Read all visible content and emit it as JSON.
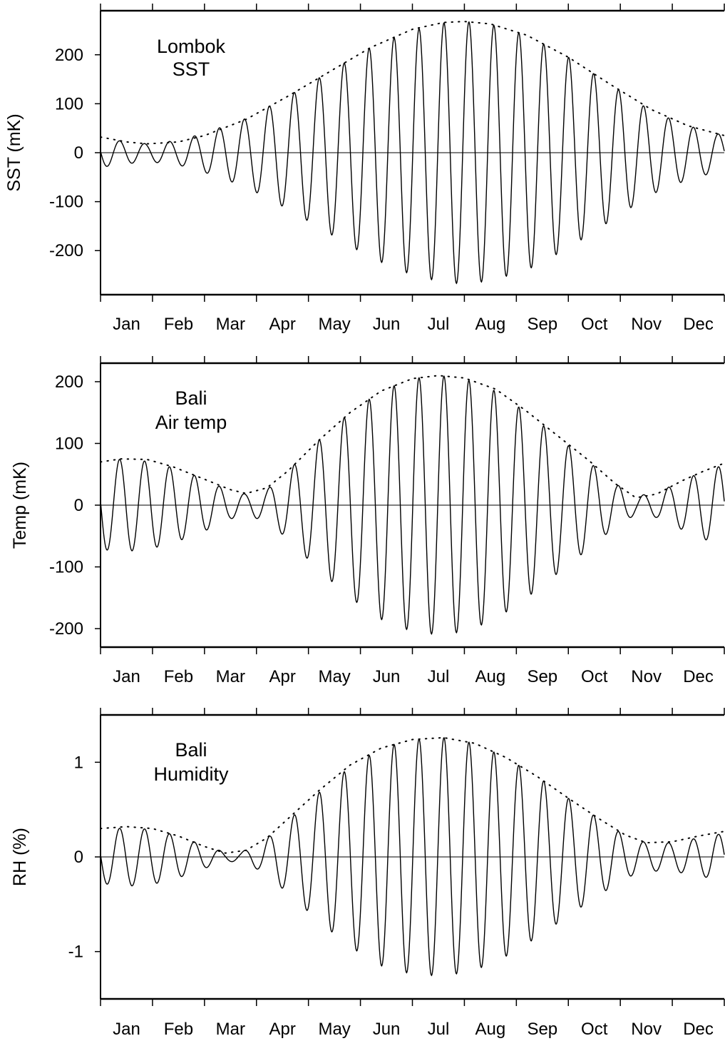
{
  "chart_data": [
    {
      "type": "line",
      "title": "",
      "annotation": [
        "Lombok",
        "SST"
      ],
      "ylabel": "SST (mK)",
      "xlabel": "",
      "ylim": [
        -290,
        290
      ],
      "yticks": [
        200,
        100,
        0,
        -100,
        -200
      ],
      "ytick_labels": [
        "200",
        "100",
        "0",
        "-100",
        "-200"
      ],
      "xlim": [
        0,
        12
      ],
      "months": [
        "Jan",
        "Feb",
        "Mar",
        "Apr",
        "May",
        "Jun",
        "Jul",
        "Aug",
        "Sep",
        "Oct",
        "Nov",
        "Dec"
      ],
      "zero_line": true,
      "series": [
        {
          "style": "solid",
          "description": "oscillation",
          "cycles_per_year": 25,
          "phase_cycles": 0.235,
          "envelope": [
            [
              0,
              30
            ],
            [
              0.3,
              25
            ],
            [
              0.9,
              18
            ],
            [
              1.5,
              25
            ],
            [
              2.0,
              40
            ],
            [
              2.8,
              70
            ],
            [
              3.6,
              115
            ],
            [
              4.4,
              165
            ],
            [
              5.2,
              215
            ],
            [
              6.0,
              250
            ],
            [
              6.6,
              265
            ],
            [
              7.0,
              268
            ],
            [
              7.5,
              262
            ],
            [
              8.2,
              240
            ],
            [
              9.0,
              195
            ],
            [
              9.8,
              140
            ],
            [
              10.6,
              85
            ],
            [
              11.3,
              55
            ],
            [
              12.0,
              35
            ]
          ]
        },
        {
          "style": "dotted",
          "description": "envelope",
          "points": [
            [
              0,
              32
            ],
            [
              0.5,
              22
            ],
            [
              0.9,
              18
            ],
            [
              1.5,
              22
            ],
            [
              2.0,
              35
            ],
            [
              2.8,
              68
            ],
            [
              3.6,
              115
            ],
            [
              4.4,
              165
            ],
            [
              5.2,
              215
            ],
            [
              6.0,
              252
            ],
            [
              6.6,
              266
            ],
            [
              7.0,
              268
            ],
            [
              7.5,
              263
            ],
            [
              8.2,
              240
            ],
            [
              9.0,
              195
            ],
            [
              9.8,
              140
            ],
            [
              10.6,
              88
            ],
            [
              11.3,
              55
            ],
            [
              12.0,
              35
            ]
          ]
        }
      ]
    },
    {
      "type": "line",
      "title": "",
      "annotation": [
        "Bali",
        "Air temp"
      ],
      "ylabel": "Temp (mK)",
      "xlabel": "",
      "ylim": [
        -230,
        230
      ],
      "yticks": [
        200,
        100,
        0,
        -100,
        -200
      ],
      "ytick_labels": [
        "200",
        "100",
        "0",
        "-100",
        "-200"
      ],
      "xlim": [
        0,
        12
      ],
      "months": [
        "Jan",
        "Feb",
        "Mar",
        "Apr",
        "May",
        "Jun",
        "Jul",
        "Aug",
        "Sep",
        "Oct",
        "Nov",
        "Dec"
      ],
      "zero_line": true,
      "series": [
        {
          "style": "solid",
          "description": "oscillation",
          "cycles_per_year": 25,
          "phase_cycles": 0.235,
          "envelope": [
            [
              0,
              72
            ],
            [
              0.5,
              75
            ],
            [
              1.0,
              70
            ],
            [
              1.5,
              58
            ],
            [
              2.0,
              42
            ],
            [
              2.5,
              22
            ],
            [
              2.8,
              18
            ],
            [
              3.2,
              25
            ],
            [
              3.6,
              55
            ],
            [
              4.2,
              105
            ],
            [
              4.8,
              150
            ],
            [
              5.4,
              185
            ],
            [
              6.0,
              205
            ],
            [
              6.5,
              210
            ],
            [
              7.0,
              205
            ],
            [
              7.6,
              185
            ],
            [
              8.2,
              150
            ],
            [
              8.8,
              110
            ],
            [
              9.4,
              70
            ],
            [
              9.9,
              35
            ],
            [
              10.3,
              15
            ],
            [
              10.7,
              20
            ],
            [
              11.2,
              40
            ],
            [
              11.6,
              55
            ],
            [
              12.0,
              65
            ]
          ]
        },
        {
          "style": "dotted",
          "description": "envelope",
          "points": [
            [
              0,
              70
            ],
            [
              0.4,
              75
            ],
            [
              0.9,
              74
            ],
            [
              1.4,
              62
            ],
            [
              2.0,
              42
            ],
            [
              2.5,
              25
            ],
            [
              2.8,
              19
            ],
            [
              3.2,
              28
            ],
            [
              3.6,
              55
            ],
            [
              4.2,
              105
            ],
            [
              4.8,
              150
            ],
            [
              5.4,
              185
            ],
            [
              6.0,
              205
            ],
            [
              6.5,
              210
            ],
            [
              7.0,
              206
            ],
            [
              7.6,
              188
            ],
            [
              8.2,
              152
            ],
            [
              8.8,
              112
            ],
            [
              9.4,
              72
            ],
            [
              9.9,
              35
            ],
            [
              10.3,
              12
            ],
            [
              10.7,
              18
            ],
            [
              11.2,
              40
            ],
            [
              11.6,
              55
            ],
            [
              12.0,
              68
            ]
          ]
        }
      ]
    },
    {
      "type": "line",
      "title": "",
      "annotation": [
        "Bali",
        "Humidity"
      ],
      "ylabel": "RH (%)",
      "xlabel": "",
      "ylim": [
        -1.5,
        1.5
      ],
      "yticks": [
        1,
        0,
        -1
      ],
      "ytick_labels": [
        "1",
        "0",
        "-1"
      ],
      "xlim": [
        0,
        12
      ],
      "months": [
        "Jan",
        "Feb",
        "Mar",
        "Apr",
        "May",
        "Jun",
        "Jul",
        "Aug",
        "Sep",
        "Oct",
        "Nov",
        "Dec"
      ],
      "zero_line": true,
      "series": [
        {
          "style": "solid",
          "description": "oscillation",
          "cycles_per_year": 25,
          "phase_cycles": 0.235,
          "envelope": [
            [
              0,
              0.28
            ],
            [
              0.5,
              0.31
            ],
            [
              1.0,
              0.29
            ],
            [
              1.5,
              0.22
            ],
            [
              2.0,
              0.12
            ],
            [
              2.4,
              0.05
            ],
            [
              2.7,
              0.05
            ],
            [
              3.1,
              0.15
            ],
            [
              3.6,
              0.38
            ],
            [
              4.2,
              0.68
            ],
            [
              4.8,
              0.95
            ],
            [
              5.4,
              1.15
            ],
            [
              6.0,
              1.24
            ],
            [
              6.6,
              1.26
            ],
            [
              7.2,
              1.2
            ],
            [
              7.8,
              1.05
            ],
            [
              8.4,
              0.85
            ],
            [
              9.0,
              0.62
            ],
            [
              9.6,
              0.4
            ],
            [
              10.1,
              0.22
            ],
            [
              10.5,
              0.15
            ],
            [
              11.0,
              0.15
            ],
            [
              11.5,
              0.2
            ],
            [
              12.0,
              0.25
            ]
          ]
        },
        {
          "style": "dotted",
          "description": "envelope",
          "points": [
            [
              0,
              0.3
            ],
            [
              0.5,
              0.32
            ],
            [
              1.0,
              0.3
            ],
            [
              1.5,
              0.22
            ],
            [
              2.0,
              0.11
            ],
            [
              2.4,
              0.04
            ],
            [
              2.8,
              0.07
            ],
            [
              3.2,
              0.2
            ],
            [
              3.6,
              0.4
            ],
            [
              4.2,
              0.7
            ],
            [
              4.8,
              0.97
            ],
            [
              5.4,
              1.15
            ],
            [
              6.0,
              1.24
            ],
            [
              6.6,
              1.26
            ],
            [
              7.2,
              1.2
            ],
            [
              7.8,
              1.05
            ],
            [
              8.4,
              0.85
            ],
            [
              9.0,
              0.62
            ],
            [
              9.6,
              0.4
            ],
            [
              10.1,
              0.23
            ],
            [
              10.5,
              0.15
            ],
            [
              11.0,
              0.16
            ],
            [
              11.5,
              0.22
            ],
            [
              12.0,
              0.27
            ]
          ]
        }
      ]
    }
  ]
}
